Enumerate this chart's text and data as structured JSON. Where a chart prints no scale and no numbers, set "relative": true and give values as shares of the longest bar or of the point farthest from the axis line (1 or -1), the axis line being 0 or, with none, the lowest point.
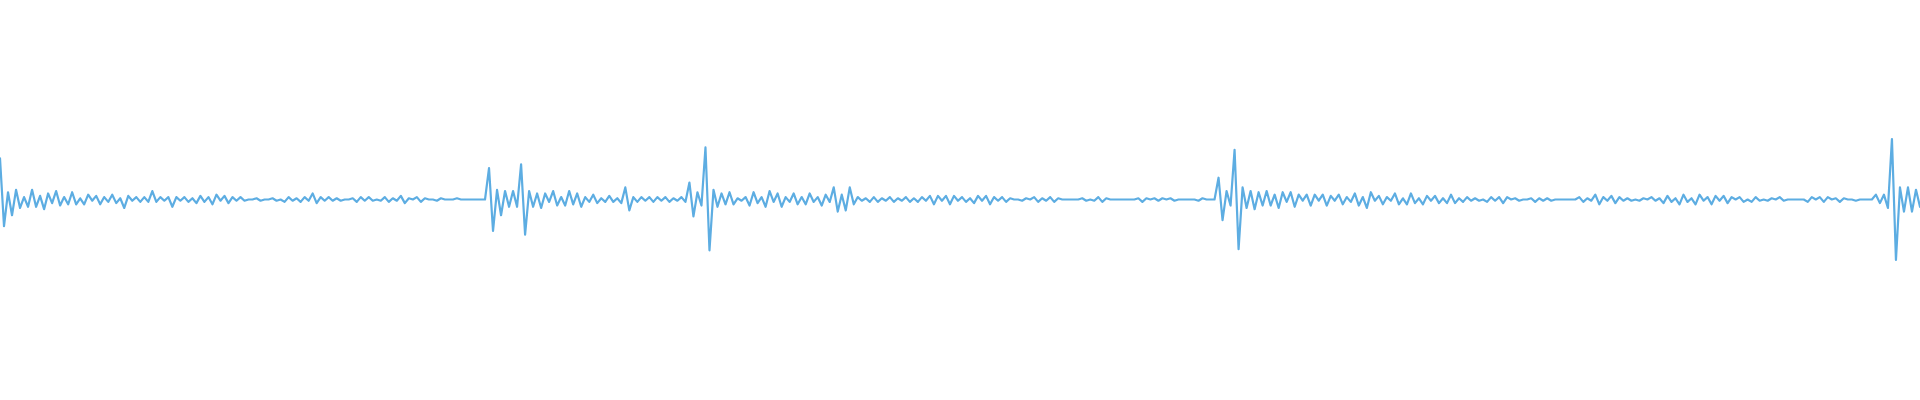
{
  "chart_data": {
    "type": "line",
    "relative": true,
    "tick_labels": false,
    "color": "#5dade2",
    "categories": [
      null,
      null,
      null,
      null,
      null,
      null,
      null,
      null,
      null,
      null,
      null,
      null,
      null,
      null,
      null,
      null,
      null,
      null,
      null,
      null,
      null,
      null,
      null,
      null,
      null,
      null,
      null,
      null,
      null,
      null,
      null,
      null,
      null,
      null,
      null,
      null,
      null,
      null,
      null,
      null,
      null,
      null,
      null,
      null,
      null,
      null,
      null,
      null,
      null,
      null,
      null,
      null,
      null,
      null,
      null,
      null,
      null,
      null,
      null,
      null,
      null,
      null,
      null,
      null,
      null,
      null,
      null,
      null,
      null,
      null,
      null,
      null,
      null,
      null,
      null,
      null,
      null,
      null,
      null,
      null,
      null,
      null,
      null,
      null,
      null,
      null,
      null,
      null,
      null,
      null,
      null,
      null,
      null,
      null,
      null,
      null,
      null,
      null,
      null,
      null,
      null,
      null,
      null,
      null,
      null,
      null,
      null,
      null,
      null,
      null,
      null,
      null,
      null,
      null,
      null,
      null,
      null,
      null,
      null,
      null,
      null,
      null,
      null,
      null,
      null,
      null,
      null,
      null,
      null,
      null,
      null,
      null,
      null,
      null,
      null,
      null,
      null,
      null,
      null,
      null,
      null,
      null,
      null,
      null,
      null,
      null,
      null,
      null,
      null,
      null,
      null,
      null,
      null,
      null,
      null,
      null,
      null,
      null,
      null,
      null,
      null,
      null,
      null,
      null,
      null,
      null,
      null,
      null,
      null,
      null,
      null,
      null,
      null,
      null,
      null,
      null,
      null,
      null,
      null,
      null,
      null,
      null,
      null,
      null,
      null,
      null,
      null,
      null,
      null,
      null,
      null,
      null,
      null,
      null,
      null,
      null,
      null,
      null,
      null,
      null,
      null,
      null,
      null,
      null,
      null,
      null,
      null,
      null,
      null,
      null,
      null,
      null,
      null,
      null,
      null,
      null,
      null,
      null,
      null,
      null,
      null,
      null,
      null,
      null,
      null,
      null,
      null,
      null,
      null,
      null,
      null,
      null,
      null,
      null,
      null,
      null,
      null,
      null,
      null,
      null,
      null,
      null,
      null,
      null,
      null,
      null,
      null,
      null,
      null,
      null,
      null,
      null,
      null,
      null,
      null,
      null,
      null,
      null,
      null,
      null,
      null,
      null,
      null,
      null,
      null,
      null,
      null,
      null,
      null,
      null,
      null,
      null,
      null,
      null,
      null,
      null,
      null,
      null,
      null,
      null,
      null,
      null,
      null,
      null,
      null,
      null,
      null,
      null,
      null,
      null,
      null,
      null,
      null,
      null,
      null,
      null,
      null,
      null,
      null,
      null,
      null,
      null,
      null,
      null,
      null,
      null,
      null,
      null,
      null,
      null,
      null,
      null,
      null,
      null,
      null,
      null,
      null,
      null,
      null,
      null,
      null,
      null,
      null,
      null,
      null,
      null,
      null,
      null,
      null,
      null,
      null,
      null,
      null,
      null,
      null,
      null,
      null,
      null,
      null,
      null,
      null,
      null,
      null,
      null,
      null,
      null,
      null,
      null,
      null,
      null,
      null,
      null,
      null,
      null,
      null,
      null,
      null,
      null,
      null,
      null,
      null,
      null,
      null,
      null,
      null,
      null,
      null,
      null,
      null,
      null,
      null,
      null,
      null,
      null,
      null,
      null,
      null,
      null,
      null,
      null,
      null,
      null,
      null,
      null,
      null,
      null,
      null,
      null,
      null,
      null,
      null,
      null,
      null,
      null,
      null,
      null,
      null,
      null,
      null,
      null,
      null,
      null,
      null,
      null,
      null,
      null,
      null,
      null,
      null,
      null,
      null,
      null,
      null,
      null,
      null,
      null,
      null,
      null,
      null,
      null,
      null,
      null,
      null,
      null,
      null,
      null,
      null,
      null,
      null,
      null,
      null,
      null,
      null,
      null,
      null,
      null,
      null,
      null,
      null,
      null,
      null,
      null,
      null,
      null,
      null,
      null,
      null,
      null,
      null,
      null,
      null,
      null,
      null,
      null,
      null,
      null,
      null,
      null,
      null,
      null,
      null,
      null,
      null,
      null,
      null,
      null,
      null,
      null,
      null,
      null,
      null,
      null,
      null,
      null,
      null,
      null,
      null,
      null,
      null,
      null
    ],
    "values": [
      0.84,
      0.28,
      0.56,
      0.37,
      0.58,
      0.43,
      0.52,
      0.44,
      0.58,
      0.44,
      0.53,
      0.42,
      0.55,
      0.47,
      0.57,
      0.45,
      0.52,
      0.46,
      0.56,
      0.46,
      0.51,
      0.46,
      0.54,
      0.49,
      0.53,
      0.46,
      0.52,
      0.48,
      0.54,
      0.47,
      0.51,
      0.43,
      0.53,
      0.49,
      0.52,
      0.48,
      0.52,
      0.48,
      0.57,
      0.48,
      0.52,
      0.49,
      0.52,
      0.44,
      0.52,
      0.49,
      0.52,
      0.48,
      0.51,
      0.47,
      0.53,
      0.48,
      0.52,
      0.46,
      0.54,
      0.49,
      0.53,
      0.47,
      0.52,
      0.49,
      0.52,
      0.49,
      0.5,
      0.5,
      0.51,
      0.49,
      0.5,
      0.5,
      0.51,
      0.49,
      0.5,
      0.48,
      0.52,
      0.49,
      0.51,
      0.48,
      0.52,
      0.49,
      0.55,
      0.47,
      0.52,
      0.49,
      0.52,
      0.49,
      0.51,
      0.49,
      0.5,
      0.5,
      0.51,
      0.48,
      0.52,
      0.49,
      0.52,
      0.49,
      0.5,
      0.49,
      0.52,
      0.48,
      0.51,
      0.49,
      0.53,
      0.47,
      0.51,
      0.5,
      0.52,
      0.48,
      0.51,
      0.5,
      0.5,
      0.49,
      0.51,
      0.5,
      0.5,
      0.5,
      0.51,
      0.5,
      0.5,
      0.5,
      0.5,
      0.5,
      0.5,
      0.5,
      0.76,
      0.24,
      0.58,
      0.37,
      0.57,
      0.44,
      0.57,
      0.44,
      0.79,
      0.21,
      0.57,
      0.44,
      0.55,
      0.43,
      0.55,
      0.48,
      0.57,
      0.45,
      0.52,
      0.45,
      0.57,
      0.46,
      0.55,
      0.44,
      0.52,
      0.48,
      0.54,
      0.47,
      0.51,
      0.48,
      0.53,
      0.48,
      0.51,
      0.47,
      0.6,
      0.41,
      0.52,
      0.48,
      0.52,
      0.49,
      0.52,
      0.48,
      0.52,
      0.49,
      0.52,
      0.48,
      0.51,
      0.49,
      0.52,
      0.48,
      0.64,
      0.36,
      0.56,
      0.45,
      0.93,
      0.08,
      0.58,
      0.44,
      0.55,
      0.46,
      0.56,
      0.46,
      0.51,
      0.49,
      0.52,
      0.45,
      0.56,
      0.47,
      0.52,
      0.44,
      0.57,
      0.48,
      0.55,
      0.44,
      0.52,
      0.48,
      0.55,
      0.46,
      0.52,
      0.46,
      0.55,
      0.48,
      0.52,
      0.45,
      0.54,
      0.48,
      0.6,
      0.4,
      0.54,
      0.41,
      0.6,
      0.46,
      0.52,
      0.49,
      0.51,
      0.48,
      0.52,
      0.48,
      0.51,
      0.49,
      0.52,
      0.48,
      0.51,
      0.49,
      0.52,
      0.48,
      0.51,
      0.48,
      0.52,
      0.49,
      0.53,
      0.46,
      0.53,
      0.49,
      0.53,
      0.46,
      0.53,
      0.49,
      0.52,
      0.48,
      0.51,
      0.47,
      0.53,
      0.49,
      0.53,
      0.46,
      0.52,
      0.49,
      0.52,
      0.48,
      0.51,
      0.5,
      0.5,
      0.49,
      0.51,
      0.5,
      0.52,
      0.48,
      0.51,
      0.49,
      0.52,
      0.48,
      0.51,
      0.5,
      0.5,
      0.5,
      0.5,
      0.5,
      0.51,
      0.49,
      0.5,
      0.49,
      0.52,
      0.48,
      0.51,
      0.5,
      0.5,
      0.5,
      0.5,
      0.5,
      0.5,
      0.5,
      0.51,
      0.48,
      0.51,
      0.5,
      0.51,
      0.49,
      0.51,
      0.5,
      0.51,
      0.49,
      0.5,
      0.5,
      0.5,
      0.5,
      0.5,
      0.49,
      0.51,
      0.5,
      0.5,
      0.5,
      0.68,
      0.33,
      0.57,
      0.45,
      0.91,
      0.09,
      0.6,
      0.43,
      0.57,
      0.42,
      0.56,
      0.45,
      0.57,
      0.45,
      0.54,
      0.43,
      0.56,
      0.48,
      0.56,
      0.44,
      0.54,
      0.49,
      0.54,
      0.45,
      0.54,
      0.49,
      0.54,
      0.45,
      0.53,
      0.49,
      0.54,
      0.46,
      0.52,
      0.48,
      0.55,
      0.45,
      0.52,
      0.43,
      0.56,
      0.49,
      0.53,
      0.46,
      0.52,
      0.49,
      0.55,
      0.46,
      0.51,
      0.46,
      0.55,
      0.47,
      0.51,
      0.46,
      0.53,
      0.49,
      0.53,
      0.47,
      0.51,
      0.47,
      0.54,
      0.47,
      0.51,
      0.48,
      0.52,
      0.49,
      0.51,
      0.49,
      0.5,
      0.48,
      0.52,
      0.49,
      0.52,
      0.47,
      0.52,
      0.5,
      0.51,
      0.49,
      0.5,
      0.5,
      0.51,
      0.48,
      0.51,
      0.49,
      0.51,
      0.49,
      0.5,
      0.5,
      0.5,
      0.5,
      0.5,
      0.5,
      0.52,
      0.48,
      0.51,
      0.49,
      0.54,
      0.46,
      0.52,
      0.49,
      0.53,
      0.47,
      0.52,
      0.49,
      0.51,
      0.49,
      0.5,
      0.49,
      0.51,
      0.5,
      0.52,
      0.49,
      0.51,
      0.47,
      0.53,
      0.48,
      0.51,
      0.46,
      0.54,
      0.48,
      0.51,
      0.46,
      0.54,
      0.49,
      0.52,
      0.46,
      0.53,
      0.49,
      0.53,
      0.47,
      0.52,
      0.5,
      0.52,
      0.48,
      0.5,
      0.48,
      0.52,
      0.49,
      0.5,
      0.49,
      0.51,
      0.5,
      0.52,
      0.49,
      0.5,
      0.5,
      0.5,
      0.5,
      0.5,
      0.48,
      0.52,
      0.5,
      0.52,
      0.48,
      0.52,
      0.5,
      0.51,
      0.48,
      0.51,
      0.5,
      0.5,
      0.49,
      0.5,
      0.5,
      0.5,
      0.5,
      0.54,
      0.47,
      0.54,
      0.43,
      1,
      0,
      0.6,
      0.4,
      0.6,
      0.4,
      0.58,
      0.44
    ]
  }
}
